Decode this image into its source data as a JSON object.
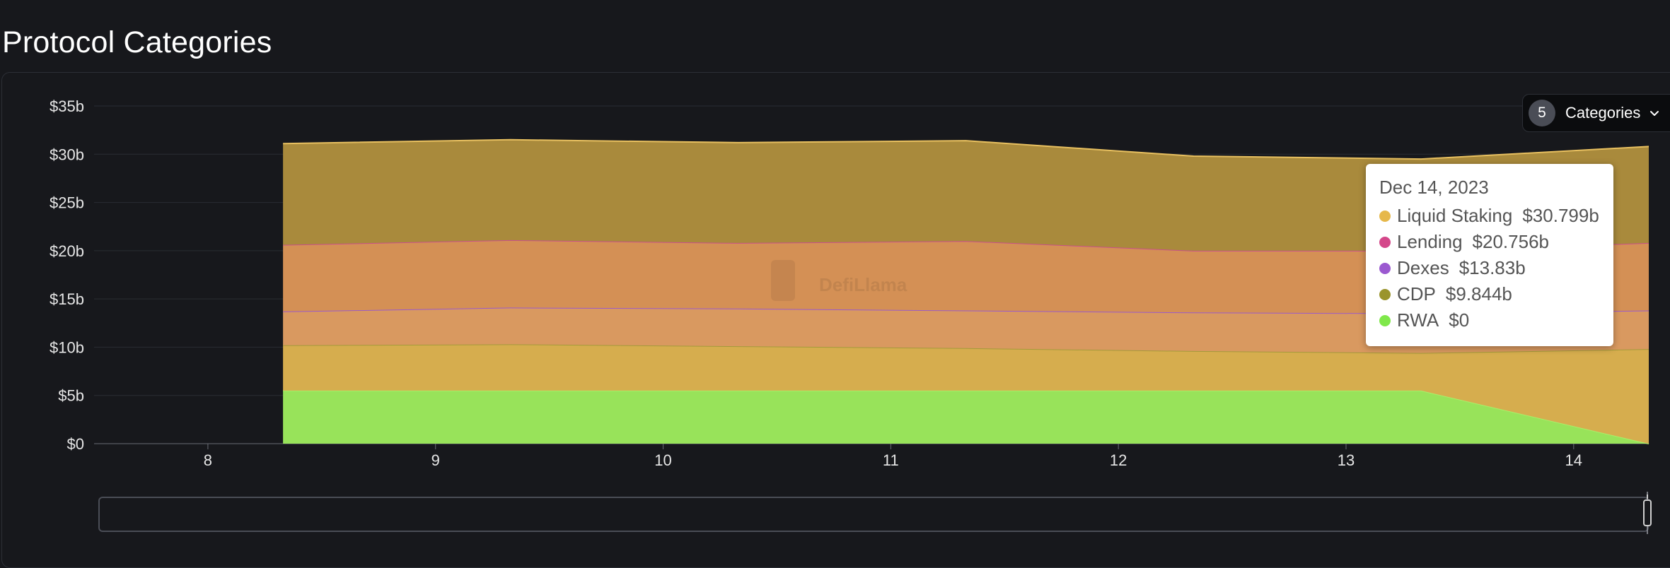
{
  "page": {
    "title": "Protocol Categories"
  },
  "category_selector": {
    "count": "5",
    "label": "Categories",
    "icon": "chevron-down-icon"
  },
  "watermark": {
    "text": "DefiLlama",
    "icon": "llama-logo-icon"
  },
  "tooltip": {
    "date": "Dec 14, 2023",
    "rows": [
      {
        "name": "Liquid Staking",
        "value": "$30.799b",
        "color": "#e6b84b"
      },
      {
        "name": "Lending",
        "value": "$20.756b",
        "color": "#d4478a"
      },
      {
        "name": "Dexes",
        "value": "$13.83b",
        "color": "#9b59d0"
      },
      {
        "name": "CDP",
        "value": "$9.844b",
        "color": "#9a942c"
      },
      {
        "name": "RWA",
        "value": "$0",
        "color": "#7fe84a"
      }
    ]
  },
  "chart_data": {
    "type": "area",
    "stacked": true,
    "x_ticks": [
      "8",
      "9",
      "10",
      "11",
      "12",
      "13",
      "14"
    ],
    "x_domain": [
      7.5,
      14.33
    ],
    "y_ticks": [
      "$0",
      "$5b",
      "$10b",
      "$15b",
      "$20b",
      "$25b",
      "$30b",
      "$35b"
    ],
    "ylim": [
      0,
      35
    ],
    "grid": true,
    "x": [
      8.33,
      9.33,
      10.33,
      11.33,
      12.33,
      13.33,
      14.33
    ],
    "series": [
      {
        "name": "RWA",
        "fill": "#98e35a",
        "line": "#a8f06a",
        "cumulative": [
          5.5,
          5.5,
          5.5,
          5.5,
          5.5,
          5.5,
          0
        ]
      },
      {
        "name": "CDP",
        "fill": "#d6ad4e",
        "line": "#a49a3a",
        "cumulative": [
          10.2,
          10.3,
          10.1,
          9.9,
          9.6,
          9.4,
          9.8
        ]
      },
      {
        "name": "Dexes",
        "fill": "#d99960",
        "line": "#9b5bc8",
        "cumulative": [
          13.7,
          14.1,
          14.0,
          13.8,
          13.6,
          13.5,
          13.8
        ]
      },
      {
        "name": "Lending",
        "fill": "#d49055",
        "line": "#c9508a",
        "cumulative": [
          20.6,
          21.1,
          20.8,
          21.0,
          20.0,
          20.0,
          20.8
        ]
      },
      {
        "name": "Liquid Staking",
        "fill": "#a98a3c",
        "line": "#e8c060",
        "cumulative": [
          31.1,
          31.5,
          31.2,
          31.4,
          29.8,
          29.5,
          30.8
        ]
      }
    ]
  }
}
